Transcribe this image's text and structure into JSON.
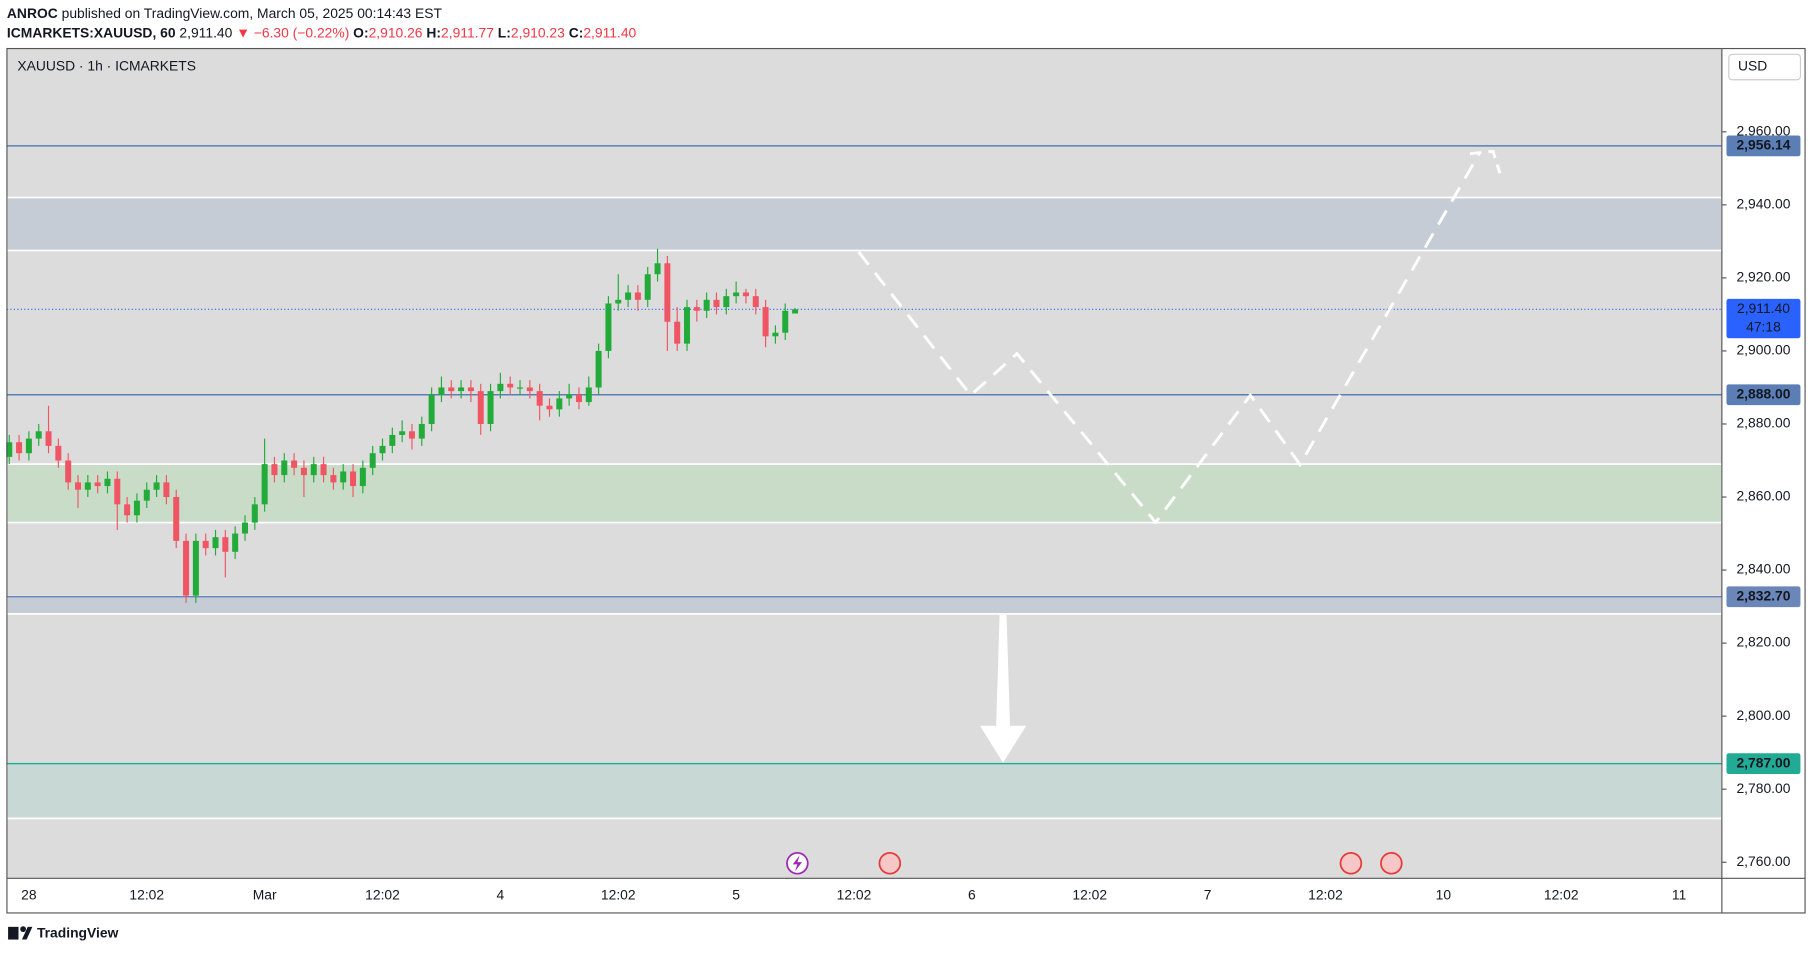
{
  "header": {
    "author": "ANROC",
    "published": "published on TradingView.com, March 05, 2025 00:14:43 EST",
    "symbol": "ICMARKETS:XAUUSD, 60",
    "price": "2,911.40",
    "change": "▼ −6.30 (−0.22%)",
    "ohlc": [
      {
        "key": "O:",
        "value": "2,910.26"
      },
      {
        "key": "H:",
        "value": "2,911.77"
      },
      {
        "key": "L:",
        "value": "2,910.23"
      },
      {
        "key": "C:",
        "value": "2,911.40"
      }
    ]
  },
  "chart_data": {
    "type": "candlestick",
    "title": "XAUUSD · 1h · ICMARKETS",
    "currency": "USD",
    "grid": false,
    "up_color": "#22ab39",
    "down_color": "#f05563",
    "categories": [
      null,
      null,
      "28",
      null,
      null,
      null,
      null,
      null,
      null,
      null,
      null,
      null,
      null,
      null,
      "12:02",
      null,
      null,
      null,
      null,
      null,
      null,
      null,
      null,
      null,
      null,
      null,
      "Mar",
      null,
      null,
      null,
      null,
      null,
      null,
      null,
      null,
      null,
      null,
      null,
      "12:02",
      null,
      null,
      null,
      null,
      null,
      null,
      null,
      null,
      null,
      null,
      null,
      "4",
      null,
      null,
      null,
      null,
      null,
      null,
      null,
      null,
      null,
      null,
      null,
      "12:02",
      null,
      null,
      null,
      null,
      null,
      null,
      null,
      null,
      null,
      null,
      null,
      "5",
      null,
      null,
      null,
      null,
      null,
      null,
      null,
      null,
      null,
      null,
      null,
      "12:02",
      null,
      null,
      null,
      null,
      null,
      null,
      null,
      null,
      null,
      null,
      null,
      "6",
      null,
      null,
      null,
      null,
      null,
      null,
      null,
      null,
      null,
      null,
      null,
      "12:02",
      null,
      null,
      null,
      null,
      null,
      null,
      null,
      null,
      null,
      null,
      null,
      "7",
      null,
      null,
      null,
      null,
      null,
      null,
      null,
      null,
      null,
      null,
      null,
      "12:02",
      null,
      null,
      null,
      null,
      null,
      null,
      null,
      null,
      null,
      null,
      null,
      "10",
      null,
      null,
      null,
      null,
      null,
      null,
      null,
      null,
      null,
      null,
      null,
      "12:02",
      null,
      null,
      null,
      null,
      null,
      null,
      null,
      null,
      null,
      null,
      null,
      "11",
      null,
      null,
      null,
      null
    ],
    "open": [
      2871,
      2875,
      2872,
      2876,
      2878,
      2874,
      2870,
      2864,
      2862,
      2864,
      2863,
      2865,
      2858,
      2855,
      2859,
      2862,
      2864,
      2860,
      2848,
      2833,
      2848,
      2846,
      2849,
      2845,
      2850,
      2853,
      2858,
      2869,
      2866,
      2870,
      2868,
      2866,
      2869,
      2866,
      2864,
      2867,
      2863,
      2868,
      2872,
      2874,
      2877,
      2878,
      2876,
      2880,
      2888,
      2890,
      2889,
      2890,
      2889,
      2880,
      2889,
      2891,
      2890,
      2890,
      2889,
      2885,
      2884,
      2887,
      2888,
      2886,
      2890,
      2900,
      2913,
      2914,
      2916,
      2914,
      2921,
      2924,
      2908,
      2902,
      2912,
      2911,
      2914,
      2912,
      2915,
      2916,
      2915,
      2912,
      2904,
      2905,
      2910.26,
      null,
      null,
      null,
      null,
      null,
      null,
      null,
      null,
      null,
      null,
      null,
      null,
      null,
      null,
      null,
      null,
      null,
      null,
      null,
      null,
      null,
      null,
      null,
      null,
      null,
      null,
      null,
      null,
      null,
      null,
      null,
      null,
      null,
      null,
      null,
      null,
      null,
      null,
      null,
      null,
      null,
      null,
      null,
      null,
      null,
      null,
      null,
      null,
      null,
      null,
      null,
      null,
      null,
      null,
      null,
      null,
      null,
      null,
      null,
      null,
      null,
      null,
      null,
      null,
      null,
      null,
      null,
      null,
      null,
      null,
      null,
      null,
      null,
      null,
      null,
      null,
      null,
      null,
      null,
      null,
      null,
      null,
      null,
      null,
      null,
      null,
      null,
      null,
      null,
      null,
      null,
      null,
      null,
      null
    ],
    "high": [
      2877,
      2877,
      2878,
      2880,
      2885,
      2876,
      2872,
      2866,
      2866,
      2866,
      2867,
      2867,
      2860,
      2861,
      2864,
      2866,
      2866,
      2862,
      2850,
      2850,
      2850,
      2851,
      2851,
      2852,
      2855,
      2860,
      2876,
      2871,
      2872,
      2872,
      2870,
      2871,
      2871,
      2868,
      2869,
      2869,
      2870,
      2874,
      2876,
      2879,
      2881,
      2880,
      2882,
      2890,
      2893,
      2892,
      2892,
      2892,
      2891,
      2891,
      2894,
      2893,
      2892,
      2892,
      2891,
      2887,
      2889,
      2891,
      2890,
      2893,
      2902,
      2915,
      2921,
      2918,
      2918,
      2923,
      2928,
      2926,
      2912,
      2914,
      2914,
      2916,
      2916,
      2917,
      2919,
      2917,
      2917,
      2914,
      2907,
      2913,
      2911.77,
      null,
      null,
      null,
      null,
      null,
      null,
      null,
      null,
      null,
      null,
      null,
      null,
      null,
      null,
      null,
      null,
      null,
      null,
      null,
      null,
      null,
      null,
      null,
      null,
      null,
      null,
      null,
      null,
      null,
      null,
      null,
      null,
      null,
      null,
      null,
      null,
      null,
      null,
      null,
      null,
      null,
      null,
      null,
      null,
      null,
      null,
      null,
      null,
      null,
      null,
      null,
      null,
      null,
      null,
      null,
      null,
      null,
      null,
      null,
      null,
      null,
      null,
      null,
      null,
      null,
      null,
      null,
      null,
      null,
      null,
      null,
      null,
      null,
      null,
      null,
      null,
      null,
      null,
      null,
      null,
      null,
      null,
      null,
      null,
      null,
      null,
      null,
      null,
      null,
      null,
      null,
      null,
      null,
      null
    ],
    "low": [
      2869,
      2870,
      2870,
      2874,
      2872,
      2868,
      2862,
      2857,
      2860,
      2861,
      2861,
      2851,
      2853,
      2853,
      2857,
      2860,
      2858,
      2846,
      2831,
      2831,
      2844,
      2844,
      2838,
      2843,
      2848,
      2851,
      2856,
      2864,
      2864,
      2866,
      2860,
      2864,
      2864,
      2862,
      2862,
      2860,
      2861,
      2866,
      2870,
      2872,
      2875,
      2873,
      2874,
      2878,
      2886,
      2887,
      2887,
      2886,
      2877,
      2878,
      2887,
      2888,
      2888,
      2887,
      2881,
      2882,
      2882,
      2885,
      2884,
      2885,
      2888,
      2898,
      2911,
      2912,
      2911,
      2912,
      2919,
      2900,
      2900,
      2900,
      2908,
      2909,
      2910,
      2910,
      2913,
      2913,
      2910,
      2901,
      2902,
      2903,
      2910.23,
      null,
      null,
      null,
      null,
      null,
      null,
      null,
      null,
      null,
      null,
      null,
      null,
      null,
      null,
      null,
      null,
      null,
      null,
      null,
      null,
      null,
      null,
      null,
      null,
      null,
      null,
      null,
      null,
      null,
      null,
      null,
      null,
      null,
      null,
      null,
      null,
      null,
      null,
      null,
      null,
      null,
      null,
      null,
      null,
      null,
      null,
      null,
      null,
      null,
      null,
      null,
      null,
      null,
      null,
      null,
      null,
      null,
      null,
      null,
      null,
      null,
      null,
      null,
      null,
      null,
      null,
      null,
      null,
      null,
      null,
      null,
      null,
      null,
      null,
      null,
      null,
      null,
      null,
      null,
      null,
      null,
      null,
      null,
      null,
      null,
      null,
      null,
      null,
      null,
      null,
      null,
      null,
      null,
      null
    ],
    "close": [
      2875,
      2872,
      2876,
      2878,
      2874,
      2870,
      2864,
      2862,
      2864,
      2863,
      2865,
      2858,
      2855,
      2859,
      2862,
      2864,
      2860,
      2848,
      2833,
      2848,
      2846,
      2849,
      2845,
      2850,
      2853,
      2858,
      2869,
      2866,
      2870,
      2868,
      2866,
      2869,
      2866,
      2864,
      2867,
      2863,
      2868,
      2872,
      2874,
      2877,
      2878,
      2876,
      2880,
      2888,
      2890,
      2889,
      2890,
      2889,
      2880,
      2889,
      2891,
      2890,
      2890,
      2889,
      2885,
      2884,
      2887,
      2888,
      2886,
      2890,
      2900,
      2913,
      2914,
      2916,
      2914,
      2921,
      2924,
      2908,
      2902,
      2912,
      2911,
      2914,
      2912,
      2915,
      2916,
      2915,
      2912,
      2904,
      2905,
      2911,
      2911.4,
      null,
      null,
      null,
      null,
      null,
      null,
      null,
      null,
      null,
      null,
      null,
      null,
      null,
      null,
      null,
      null,
      null,
      null,
      null,
      null,
      null,
      null,
      null,
      null,
      null,
      null,
      null,
      null,
      null,
      null,
      null,
      null,
      null,
      null,
      null,
      null,
      null,
      null,
      null,
      null,
      null,
      null,
      null,
      null,
      null,
      null,
      null,
      null,
      null,
      null,
      null,
      null,
      null,
      null,
      null,
      null,
      null,
      null,
      null,
      null,
      null,
      null,
      null,
      null,
      null,
      null,
      null,
      null,
      null,
      null,
      null,
      null,
      null,
      null,
      null,
      null,
      null,
      null,
      null,
      null,
      null,
      null,
      null,
      null,
      null,
      null,
      null,
      null,
      null,
      null,
      null,
      null,
      null,
      null
    ],
    "ylim": [
      2755.6,
      2982.8
    ],
    "yticks": [
      {
        "value": 2960,
        "label": "2,960.00"
      },
      {
        "value": 2940,
        "label": "2,940.00"
      },
      {
        "value": 2920,
        "label": "2,920.00"
      },
      {
        "value": 2900,
        "label": "2,900.00"
      },
      {
        "value": 2880,
        "label": "2,880.00"
      },
      {
        "value": 2860,
        "label": "2,860.00"
      },
      {
        "value": 2840,
        "label": "2,840.00"
      },
      {
        "value": 2820,
        "label": "2,820.00"
      },
      {
        "value": 2800,
        "label": "2,800.00"
      },
      {
        "value": 2780,
        "label": "2,780.00"
      },
      {
        "value": 2760,
        "label": "2,760.00"
      }
    ],
    "zones": [
      {
        "top": 2942,
        "bottom": 2927.5,
        "color": "#c5ccd6"
      },
      {
        "top": 2869,
        "bottom": 2853,
        "color": "#c8dcc8"
      },
      {
        "top": 2832.7,
        "bottom": 2828,
        "color": "#c5ccd6"
      },
      {
        "top": 2787,
        "bottom": 2772,
        "color": "#c8d8d4"
      }
    ],
    "price_lines": [
      {
        "value": 2956.14,
        "label": "2,956.14",
        "color": "#5b7fb5"
      },
      {
        "value": 2888,
        "label": "2,888.00",
        "color": "#5b7fb5"
      },
      {
        "value": 2832.7,
        "label": "2,832.70",
        "color": "#6b86b8"
      },
      {
        "value": 2787,
        "label": "2,787.00",
        "color": "#22ab94"
      }
    ],
    "last_price": {
      "value": 2911.4,
      "label": "2,911.40",
      "countdown": "47:18",
      "color": "#2962ff"
    }
  },
  "brand": "TradingView"
}
